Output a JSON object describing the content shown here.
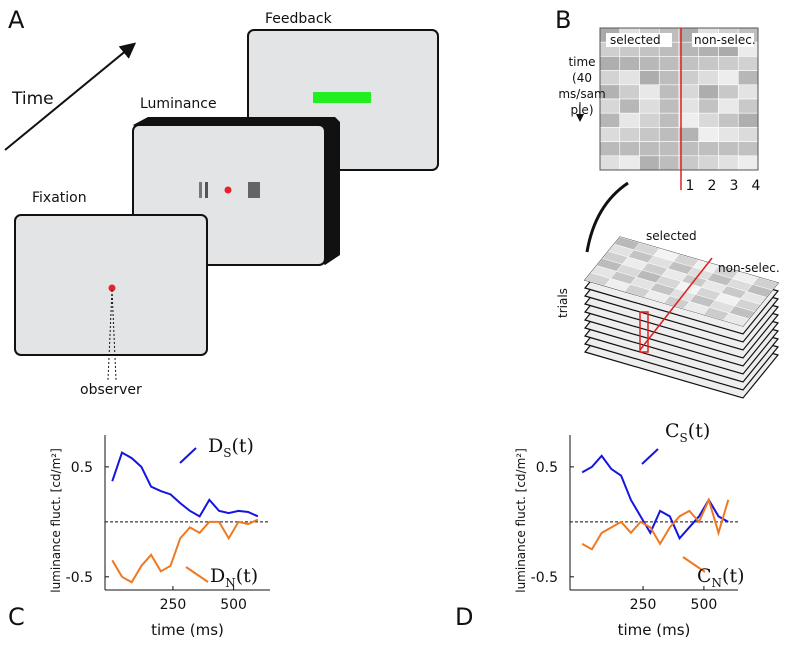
{
  "panel_a": {
    "label": "A",
    "time": "Time",
    "screens": [
      "Fixation",
      "Luminance",
      "Feedback"
    ],
    "observer": "observer"
  },
  "panel_b": {
    "label": "B",
    "selected": "selected",
    "non_selected": "non-selec.",
    "time_label": [
      "time",
      "(40",
      "ms/sam",
      "ple)"
    ],
    "columns": [
      "1",
      "2",
      "3",
      "4"
    ],
    "stack_selected": "selected",
    "stack_non_selected": "non-selec.",
    "trials": "trials"
  },
  "chart_data": [
    {
      "type": "line",
      "panel": "C",
      "x_label": "time (ms)",
      "y_label": "luminance fluct. [cd/m²]",
      "x": [
        0,
        40,
        80,
        120,
        160,
        200,
        240,
        280,
        320,
        360,
        400,
        440,
        480,
        520,
        560,
        600
      ],
      "xlim": [
        -30,
        650
      ],
      "ylim": [
        -0.62,
        0.79
      ],
      "xticks": [
        250,
        500
      ],
      "yticks": [
        0.5,
        -0.5
      ],
      "hline": 0,
      "series": [
        {
          "name": "D",
          "sub": "S",
          "suffix": "(t)",
          "color": "#1515e0",
          "values": [
            0.37,
            0.63,
            0.58,
            0.5,
            0.32,
            0.28,
            0.25,
            0.17,
            0.1,
            0.05,
            0.2,
            0.1,
            0.08,
            0.1,
            0.09,
            0.05
          ]
        },
        {
          "name": "D",
          "sub": "N",
          "suffix": "(t)",
          "color": "#f07820",
          "values": [
            -0.35,
            -0.5,
            -0.55,
            -0.4,
            -0.3,
            -0.45,
            -0.4,
            -0.15,
            -0.05,
            -0.1,
            0,
            0,
            -0.15,
            0,
            -0.02,
            0.02
          ]
        }
      ]
    },
    {
      "type": "line",
      "panel": "D",
      "x_label": "time (ms)",
      "y_label": "luminance fluct. [cd/m²]",
      "x": [
        0,
        40,
        80,
        120,
        160,
        200,
        240,
        280,
        320,
        360,
        400,
        440,
        480,
        520,
        560,
        600
      ],
      "xlim": [
        -50,
        640
      ],
      "ylim": [
        -0.62,
        0.79
      ],
      "xticks": [
        250,
        500
      ],
      "yticks": [
        0.5,
        -0.5
      ],
      "hline": 0,
      "series": [
        {
          "name": "C",
          "sub": "S",
          "suffix": "(t)",
          "color": "#1515e0",
          "values": [
            0.45,
            0.5,
            0.6,
            0.48,
            0.42,
            0.2,
            0.05,
            -0.1,
            0.1,
            0.05,
            -0.15,
            -0.05,
            0.05,
            0.2,
            0.05,
            0.0
          ]
        },
        {
          "name": "C",
          "sub": "N",
          "suffix": "(t)",
          "color": "#f07820",
          "values": [
            -0.2,
            -0.25,
            -0.1,
            -0.05,
            0.0,
            -0.1,
            0.0,
            -0.05,
            -0.2,
            -0.05,
            0.05,
            0.1,
            0.0,
            0.2,
            -0.1,
            0.2
          ]
        }
      ]
    }
  ]
}
